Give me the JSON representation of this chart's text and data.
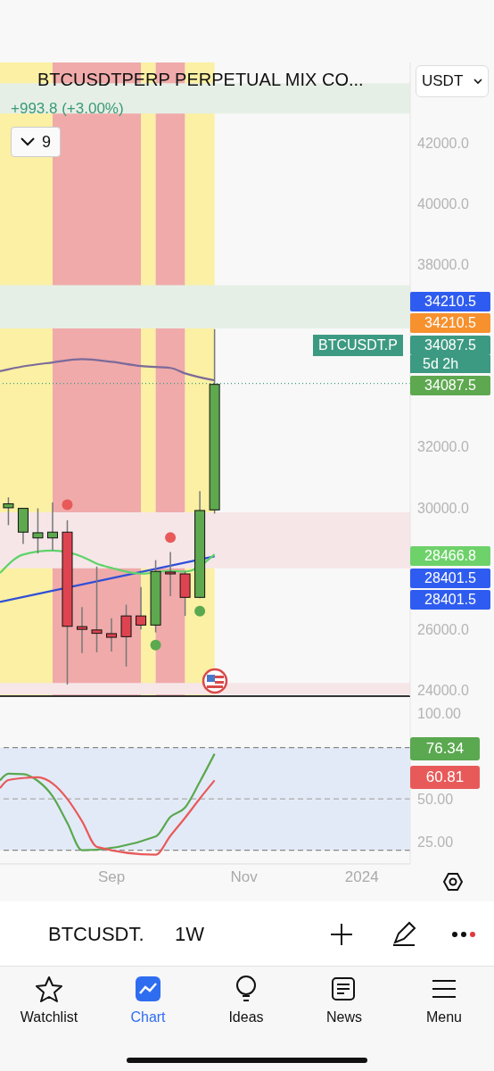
{
  "chart_data": [
    {
      "type": "candlestick",
      "title": "BTCUSDTPERP PERPETUAL MIX CO...",
      "x": [
        "2023-07-17",
        "2023-07-24",
        "2023-07-31",
        "2023-08-07",
        "2023-08-14",
        "2023-08-21",
        "2023-08-28",
        "2023-09-04",
        "2023-09-11",
        "2023-09-18",
        "2023-09-25",
        "2023-10-02",
        "2023-10-09",
        "2023-10-16",
        "2023-10-23"
      ],
      "ohlc": [
        [
          30040,
          30380,
          29470,
          30170
        ],
        [
          29240,
          30020,
          28850,
          30020
        ],
        [
          29050,
          30020,
          28540,
          29220
        ],
        [
          29050,
          30210,
          28650,
          29240
        ],
        [
          29240,
          29630,
          24240,
          26150
        ],
        [
          26140,
          26780,
          25270,
          26050
        ],
        [
          26030,
          28110,
          25300,
          25920
        ],
        [
          25910,
          26410,
          25320,
          25790
        ],
        [
          26490,
          26860,
          24830,
          25810
        ],
        [
          26490,
          27440,
          26050,
          26190
        ],
        [
          26190,
          28320,
          25950,
          27950
        ],
        [
          27930,
          28590,
          27140,
          27870
        ],
        [
          27870,
          27950,
          26490,
          27100
        ],
        [
          27100,
          30590,
          27070,
          29950
        ],
        [
          29970,
          35900,
          29850,
          34087.5
        ]
      ],
      "series": [
        {
          "type": "line",
          "color": "#7b6a9a",
          "x": [
            "2023-07-13",
            "2023-07-24",
            "2023-08-07",
            "2023-08-21",
            "2023-09-04",
            "2023-09-18",
            "2023-10-02",
            "2023-10-09",
            "2023-10-23"
          ],
          "values": [
            34490,
            34650,
            34780,
            34890,
            34800,
            34660,
            34600,
            34420,
            34190
          ]
        },
        {
          "type": "line",
          "color": "#2f4fd8",
          "x": [
            "2023-07-13",
            "2023-10-23"
          ],
          "values": [
            26900,
            28401.5
          ]
        },
        {
          "type": "line",
          "color": "#5fd36a",
          "x": [
            "2023-07-13",
            "2023-07-24",
            "2023-08-07",
            "2023-08-21",
            "2023-08-28",
            "2023-09-04",
            "2023-09-18",
            "2023-09-25",
            "2023-10-02",
            "2023-10-09",
            "2023-10-16",
            "2023-10-23"
          ],
          "values": [
            27850,
            28460,
            28590,
            28390,
            28160,
            28020,
            27830,
            null,
            27920,
            27900,
            null,
            28466.8
          ]
        },
        {
          "type": "scatter",
          "color": "#e85a5a",
          "x": [
            "2023-08-14",
            "2023-10-02"
          ],
          "values": [
            30100,
            29020
          ]
        },
        {
          "type": "scatter",
          "color": "#5aa84f",
          "x": [
            "2023-09-25",
            "2023-10-16"
          ],
          "values": [
            25480,
            26600
          ]
        }
      ],
      "bands": [
        {
          "axis": "x",
          "from": "2023-07-13",
          "to": "2023-08-07",
          "color": "#fbf0a3"
        },
        {
          "axis": "x",
          "from": "2023-08-07",
          "to": "2023-09-18",
          "color": "#f0aaaa"
        },
        {
          "axis": "x",
          "from": "2023-09-18",
          "to": "2023-09-25",
          "color": "#fbf0a3"
        },
        {
          "axis": "x",
          "from": "2023-09-25",
          "to": "2023-10-09",
          "color": "#f0aaaa"
        },
        {
          "axis": "x",
          "from": "2023-10-09",
          "to": "2023-10-23",
          "color": "#fbf0a3"
        },
        {
          "axis": "y",
          "from": 42970,
          "to": 43970,
          "color": "#e6efe6"
        },
        {
          "axis": "y",
          "from": 35900,
          "to": 37320,
          "color": "#e6efe6"
        },
        {
          "axis": "y",
          "from": 28010,
          "to": 29850,
          "color": "#f6e6e8"
        },
        {
          "axis": "y",
          "from": 23850,
          "to": 24230,
          "color": "#f6e6e8"
        }
      ],
      "ref_lines": [
        {
          "axis": "y",
          "value": 34087.5,
          "color": "#3d9a82",
          "line_style": "dotted"
        }
      ],
      "annotations": [
        "+993.8 (+3.00%)",
        "9",
        "USDT",
        "BTCUSDT.P",
        "5d 2h",
        "BTCUSDT.",
        "1W",
        "Watchlist",
        "Chart",
        "Ideas",
        "News",
        "Menu",
        "34210.5",
        "34210.5",
        "34087.5",
        "34087.5",
        "28466.8",
        "28401.5",
        "28401.5"
      ],
      "xlim": [
        "2023-07-13",
        "2024-01-24"
      ],
      "ylim": [
        23800,
        44650
      ],
      "yticks": [
        {
          "value": 24000,
          "label": "24000.0"
        },
        {
          "value": 26000,
          "label": "26000.0"
        },
        {
          "value": 30000,
          "label": "30000.0"
        },
        {
          "value": 32000,
          "label": "32000.0"
        },
        {
          "value": 38000,
          "label": "38000.0"
        },
        {
          "value": 40000,
          "label": "40000.0"
        },
        {
          "value": 42000,
          "label": "42000.0"
        }
      ],
      "tick_labels": "y"
    },
    {
      "type": "line",
      "series": [
        {
          "color": "#5aa84f",
          "x": [
            "2023-07-13",
            "2023-07-17",
            "2023-07-24",
            "2023-07-31",
            "2023-08-07",
            "2023-08-14",
            "2023-08-21",
            "2023-09-25",
            "2023-10-02",
            "2023-10-09",
            "2023-10-16",
            "2023-10-23"
          ],
          "values": [
            60.8,
            64.7,
            64.5,
            60.5,
            51.6,
            36,
            20,
            28,
            39.5,
            45,
            60,
            76.34
          ]
        },
        {
          "color": "#e85a5a",
          "x": [
            "2023-07-13",
            "2023-07-17",
            "2023-07-24",
            "2023-07-31",
            "2023-08-07",
            "2023-08-14",
            "2023-08-21",
            "2023-08-28",
            "2023-09-25",
            "2023-10-02",
            "2023-10-09",
            "2023-10-16",
            "2023-10-23"
          ],
          "values": [
            56.3,
            61,
            62.2,
            62.6,
            59,
            50,
            37,
            22,
            17.4,
            28.4,
            39,
            50.2,
            60.81
          ]
        }
      ],
      "bands": [
        {
          "axis": "y",
          "from": 20,
          "to": 80,
          "color": "#e3eaf7"
        }
      ],
      "ref_lines": [
        {
          "axis": "y",
          "value": 80,
          "line_style": "dashed",
          "color": "#888888"
        },
        {
          "axis": "y",
          "value": 50,
          "line_style": "dashed",
          "color": "#aaaaaa"
        },
        {
          "axis": "y",
          "value": 20,
          "line_style": "dashed",
          "color": "#888888"
        }
      ],
      "annotations": [
        "76.34",
        "60.81"
      ],
      "xlim": [
        "2023-07-13",
        "2024-01-24"
      ],
      "xticks": [
        {
          "value": "2023-09-04",
          "label": "Sep"
        },
        {
          "value": "2023-11-06",
          "label": "Nov"
        },
        {
          "value": "2024-01-01",
          "label": "2024"
        }
      ],
      "ylim": [
        12,
        109
      ],
      "yticks": [
        {
          "value": 100,
          "label": "100.00"
        },
        {
          "value": 50,
          "label": "50.00"
        },
        {
          "value": 25,
          "label": "25.00"
        }
      ]
    }
  ]
}
